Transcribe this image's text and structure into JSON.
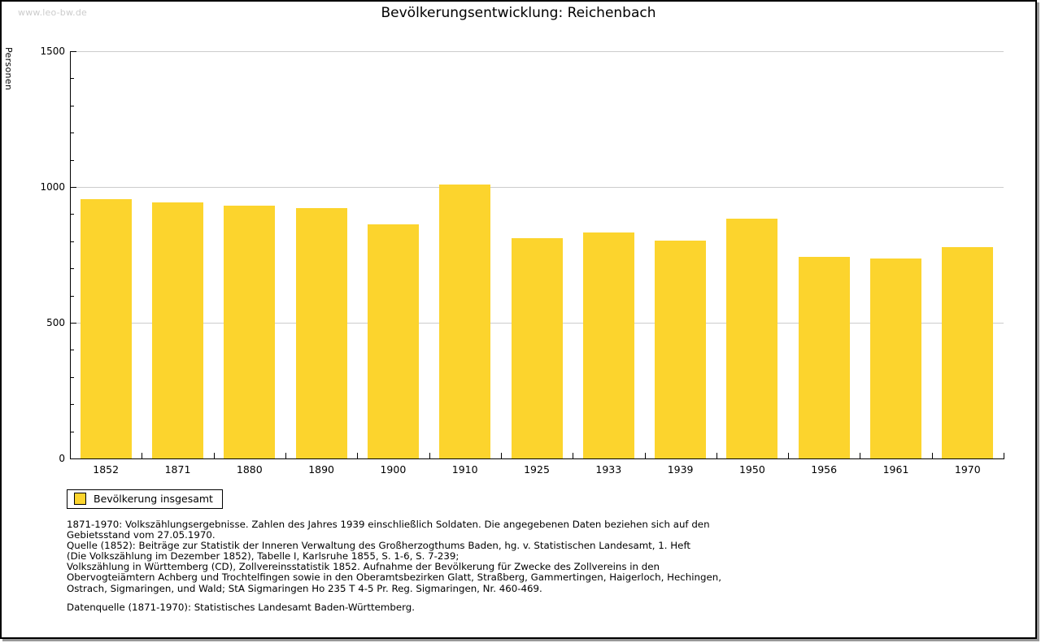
{
  "page": {
    "watermark": "www.leo-bw.de",
    "title": "Bevölkerungsentwicklung: Reichenbach"
  },
  "chart_data": {
    "type": "bar",
    "title": "Bevölkerungsentwicklung: Reichenbach",
    "xlabel": "",
    "ylabel": "Personen",
    "categories": [
      "1852",
      "1871",
      "1880",
      "1890",
      "1900",
      "1910",
      "1925",
      "1933",
      "1939",
      "1950",
      "1956",
      "1961",
      "1970"
    ],
    "values": [
      956,
      942,
      930,
      921,
      861,
      1008,
      813,
      831,
      804,
      882,
      744,
      736,
      780
    ],
    "ylim": [
      0,
      1500
    ],
    "yticks_major": [
      0,
      500,
      1000,
      1500
    ],
    "ytick_minor_step": 100,
    "grid": "horizontal-at-major-ticks",
    "bar_color": "#fcd42d",
    "gridline_color": "#cccccc",
    "legend_position": "bottom-left",
    "legend_entries": [
      "Bevölkerung insgesamt"
    ]
  },
  "legend": {
    "label": "Bevölkerung insgesamt"
  },
  "notes": {
    "lines": [
      "1871-1970: Volkszählungsergebnisse. Zahlen des Jahres 1939 einschließlich Soldaten. Die angegebenen Daten beziehen sich auf den",
      "Gebietsstand vom 27.05.1970.",
      "Quelle (1852): Beiträge zur Statistik der Inneren Verwaltung des Großherzogthums Baden, hg. v. Statistischen Landesamt, 1. Heft",
      "(Die Volkszählung im Dezember 1852), Tabelle I, Karlsruhe 1855, S. 1-6, S. 7-239;",
      "Volkszählung in Württemberg (CD), Zollvereinsstatistik 1852. Aufnahme der Bevölkerung für Zwecke des Zollvereins in den",
      "Obervogteiämtern Achberg und Trochtelfingen sowie in den Oberamtsbezirken Glatt, Straßberg, Gammertingen, Haigerloch, Hechingen,",
      "Ostrach, Sigmaringen, und Wald; StA Sigmaringen Ho 235 T 4-5 Pr. Reg. Sigmaringen, Nr. 460-469."
    ],
    "datasource": "Datenquelle (1871-1970): Statistisches Landesamt Baden-Württemberg."
  }
}
